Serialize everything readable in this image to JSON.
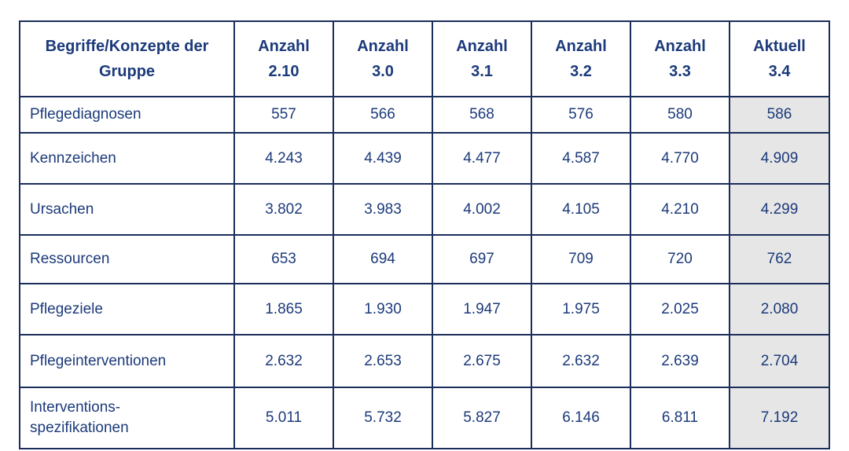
{
  "table": {
    "header": [
      "Begriffe/Konzepte der Gruppe",
      "Anzahl 2.10",
      "Anzahl 3.0",
      "Anzahl 3.1",
      "Anzahl 3.2",
      "Anzahl 3.3",
      "Aktuell 3.4"
    ],
    "rows": [
      [
        "Pflegediagnosen",
        "557",
        "566",
        "568",
        "576",
        "580",
        "586"
      ],
      [
        "Kennzeichen",
        "4.243",
        "4.439",
        "4.477",
        "4.587",
        "4.770",
        "4.909"
      ],
      [
        "Ursachen",
        "3.802",
        "3.983",
        "4.002",
        "4.105",
        "4.210",
        "4.299"
      ],
      [
        "Ressourcen",
        "653",
        "694",
        "697",
        "709",
        "720",
        "762"
      ],
      [
        "Pflegeziele",
        "1.865",
        "1.930",
        "1.947",
        "1.975",
        "2.025",
        "2.080"
      ],
      [
        "Pflegeinterventionen",
        "2.632",
        "2.653",
        "2.675",
        "2.632",
        "2.639",
        "2.704"
      ],
      [
        "Interventions-spezifikationen",
        "5.011",
        "5.732",
        "5.827",
        "6.146",
        "6.811",
        "7.192"
      ]
    ]
  }
}
